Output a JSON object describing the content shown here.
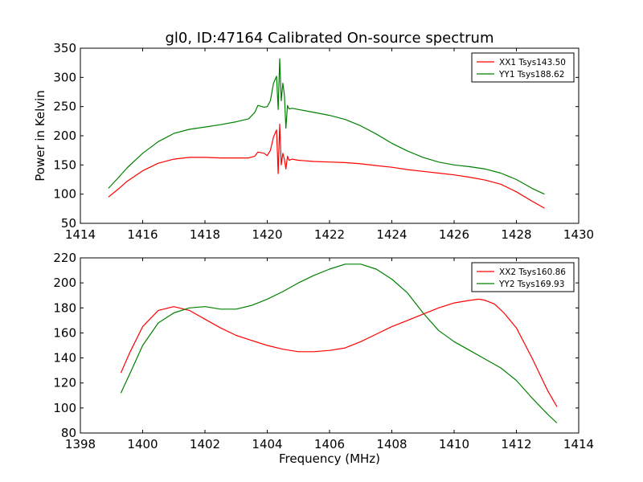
{
  "chart_data": [
    {
      "type": "line",
      "title": "gl0, ID:47164 Calibrated On-source spectrum",
      "xlabel": "",
      "ylabel": "Power in Kelvin",
      "xlim": [
        1414,
        1430
      ],
      "ylim": [
        50,
        350
      ],
      "x_ticks": [
        "1414",
        "1416",
        "1418",
        "1420",
        "1422",
        "1424",
        "1426",
        "1428",
        "1430"
      ],
      "y_ticks": [
        "50",
        "100",
        "150",
        "200",
        "250",
        "300",
        "350"
      ],
      "grid": false,
      "legend_position": "top-right",
      "series": [
        {
          "name": "XX1 Tsys143.50",
          "color": "#ff0000",
          "x": [
            1414.9,
            1415.2,
            1415.5,
            1416.0,
            1416.5,
            1417.0,
            1417.5,
            1418.0,
            1418.5,
            1419.0,
            1419.4,
            1419.6,
            1419.7,
            1419.9,
            1420.0,
            1420.1,
            1420.2,
            1420.3,
            1420.35,
            1420.4,
            1420.45,
            1420.5,
            1420.55,
            1420.6,
            1420.65,
            1420.7,
            1420.8,
            1421.0,
            1421.5,
            1422.0,
            1422.5,
            1423.0,
            1423.5,
            1424.0,
            1424.5,
            1425.0,
            1425.5,
            1426.0,
            1426.5,
            1427.0,
            1427.5,
            1428.0,
            1428.5,
            1428.9
          ],
          "y": [
            95,
            108,
            122,
            140,
            153,
            160,
            163,
            163,
            162,
            162,
            162,
            165,
            172,
            170,
            166,
            175,
            198,
            210,
            135,
            220,
            150,
            170,
            160,
            143,
            165,
            158,
            160,
            158,
            156,
            155,
            154,
            152,
            149,
            146,
            142,
            139,
            136,
            133,
            129,
            124,
            117,
            104,
            88,
            76
          ]
        },
        {
          "name": "YY1 Tsys188.62",
          "color": "#008000",
          "x": [
            1414.9,
            1415.2,
            1415.5,
            1416.0,
            1416.5,
            1417.0,
            1417.5,
            1418.0,
            1418.5,
            1419.0,
            1419.4,
            1419.6,
            1419.7,
            1419.9,
            1420.0,
            1420.1,
            1420.2,
            1420.3,
            1420.35,
            1420.4,
            1420.45,
            1420.5,
            1420.55,
            1420.6,
            1420.65,
            1420.7,
            1420.8,
            1421.0,
            1421.5,
            1422.0,
            1422.5,
            1423.0,
            1423.5,
            1424.0,
            1424.5,
            1425.0,
            1425.5,
            1426.0,
            1426.5,
            1427.0,
            1427.5,
            1428.0,
            1428.5,
            1428.9
          ],
          "y": [
            110,
            127,
            145,
            170,
            190,
            204,
            211,
            215,
            219,
            224,
            229,
            240,
            252,
            249,
            250,
            260,
            290,
            302,
            245,
            332,
            260,
            290,
            270,
            213,
            252,
            246,
            247,
            245,
            240,
            235,
            228,
            217,
            203,
            187,
            174,
            163,
            155,
            150,
            147,
            143,
            136,
            125,
            110,
            100
          ]
        }
      ]
    },
    {
      "type": "line",
      "title": "",
      "xlabel": "Frequency (MHz)",
      "ylabel": "",
      "xlim": [
        1398,
        1414
      ],
      "ylim": [
        80,
        220
      ],
      "x_ticks": [
        "1398",
        "1400",
        "1402",
        "1404",
        "1406",
        "1408",
        "1410",
        "1412",
        "1414"
      ],
      "y_ticks": [
        "80",
        "100",
        "120",
        "140",
        "160",
        "180",
        "200",
        "220"
      ],
      "grid": false,
      "legend_position": "top-right",
      "series": [
        {
          "name": "XX2 Tsys160.86",
          "color": "#ff0000",
          "x": [
            1399.3,
            1399.6,
            1400.0,
            1400.5,
            1401.0,
            1401.5,
            1402.0,
            1402.5,
            1403.0,
            1403.5,
            1404.0,
            1404.5,
            1405.0,
            1405.5,
            1406.0,
            1406.5,
            1407.0,
            1407.5,
            1408.0,
            1408.5,
            1409.0,
            1409.5,
            1410.0,
            1410.5,
            1410.8,
            1411.0,
            1411.3,
            1411.6,
            1412.0,
            1412.5,
            1413.0,
            1413.3
          ],
          "y": [
            128,
            145,
            165,
            178,
            181,
            178,
            171,
            164,
            158,
            154,
            150,
            147,
            145,
            145,
            146,
            148,
            153,
            159,
            165,
            170,
            175,
            180,
            184,
            186,
            187,
            186,
            183,
            176,
            164,
            140,
            114,
            101
          ]
        },
        {
          "name": "YY2 Tsys169.93",
          "color": "#008000",
          "x": [
            1399.3,
            1399.6,
            1400.0,
            1400.5,
            1401.0,
            1401.5,
            1402.0,
            1402.5,
            1403.0,
            1403.5,
            1404.0,
            1404.5,
            1405.0,
            1405.5,
            1406.0,
            1406.5,
            1407.0,
            1407.5,
            1408.0,
            1408.5,
            1409.0,
            1409.5,
            1410.0,
            1410.5,
            1411.0,
            1411.5,
            1412.0,
            1412.5,
            1413.0,
            1413.3
          ],
          "y": [
            112,
            128,
            150,
            168,
            176,
            180,
            181,
            179,
            179,
            182,
            187,
            193,
            200,
            206,
            211,
            215,
            215,
            211,
            203,
            192,
            176,
            162,
            153,
            146,
            139,
            132,
            122,
            108,
            95,
            88
          ]
        }
      ]
    }
  ]
}
